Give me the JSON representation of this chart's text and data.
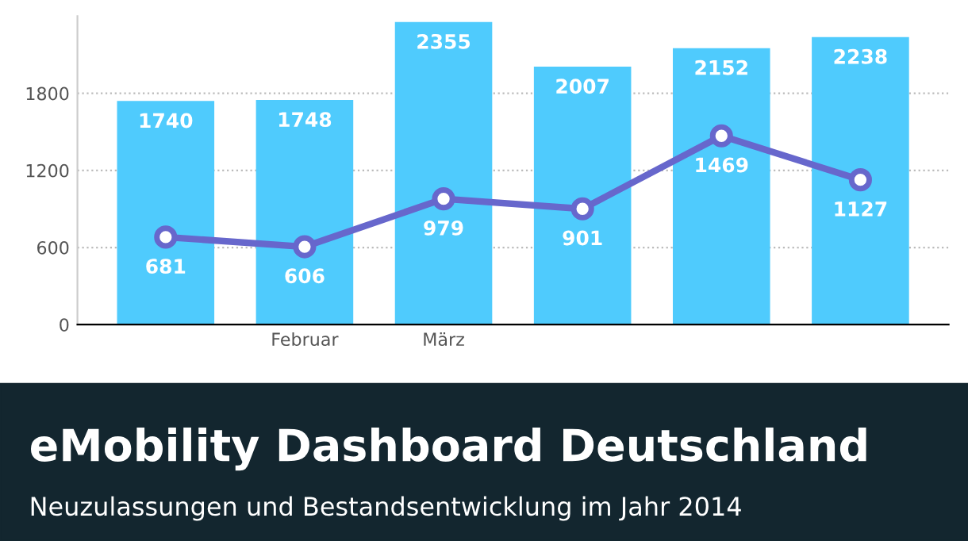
{
  "chart_data": {
    "type": "bar",
    "title": "eMobility Dashboard Deutschland",
    "subtitle": "Neuzulassungen und Bestandsentwicklung im Jahr 2014",
    "categories": [
      null,
      "Februar",
      "März",
      null,
      null,
      null
    ],
    "series": [
      {
        "color": "#4fcbfd",
        "values": [
          1740,
          1748,
          2355,
          2007,
          2152,
          2238
        ]
      },
      {
        "type": "line",
        "color": "#6767cc",
        "values": [
          681,
          606,
          979,
          901,
          1469,
          1127
        ]
      }
    ],
    "ylim": [
      0,
      2400
    ],
    "yticks": [
      0,
      600,
      1200,
      1800
    ],
    "grid": "y",
    "data_labels": true,
    "marker": "circle",
    "line_style": "solid"
  }
}
